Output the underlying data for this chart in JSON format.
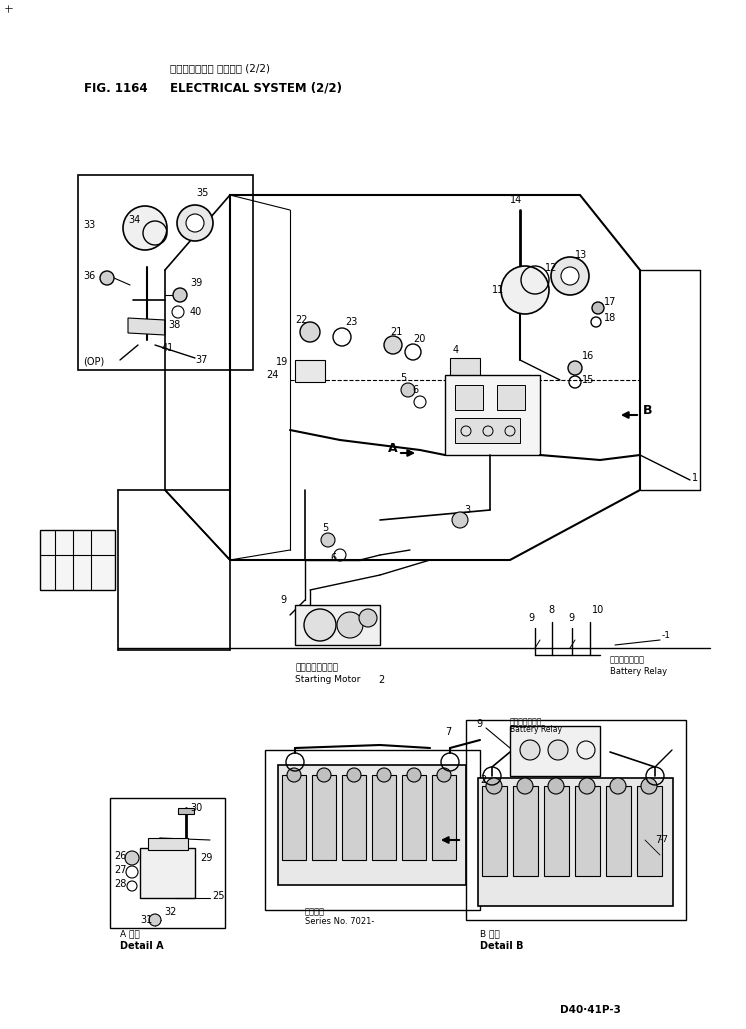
{
  "bg": "#ffffff",
  "lc": "#000000",
  "title_ja": "エレクトリカル システム (2/2)",
  "title_en": "ELECTRICAL SYSTEM (2/2)",
  "fig_no": "FIG. 1164",
  "part_no": "D40·41P-3",
  "starter_ja": "スターターモータ",
  "starter_en": "Starting Motor",
  "battery_relay_ja": "バッテリリレー",
  "battery_relay_en": "Battery Relay",
  "serial_ja": "適用機種",
  "serial_en": "Series No. 7021-",
  "detail_a_ja": "A 詳細",
  "detail_a_en": "Detail A",
  "detail_b_ja": "B 詳細",
  "detail_b_en": "Detail B"
}
